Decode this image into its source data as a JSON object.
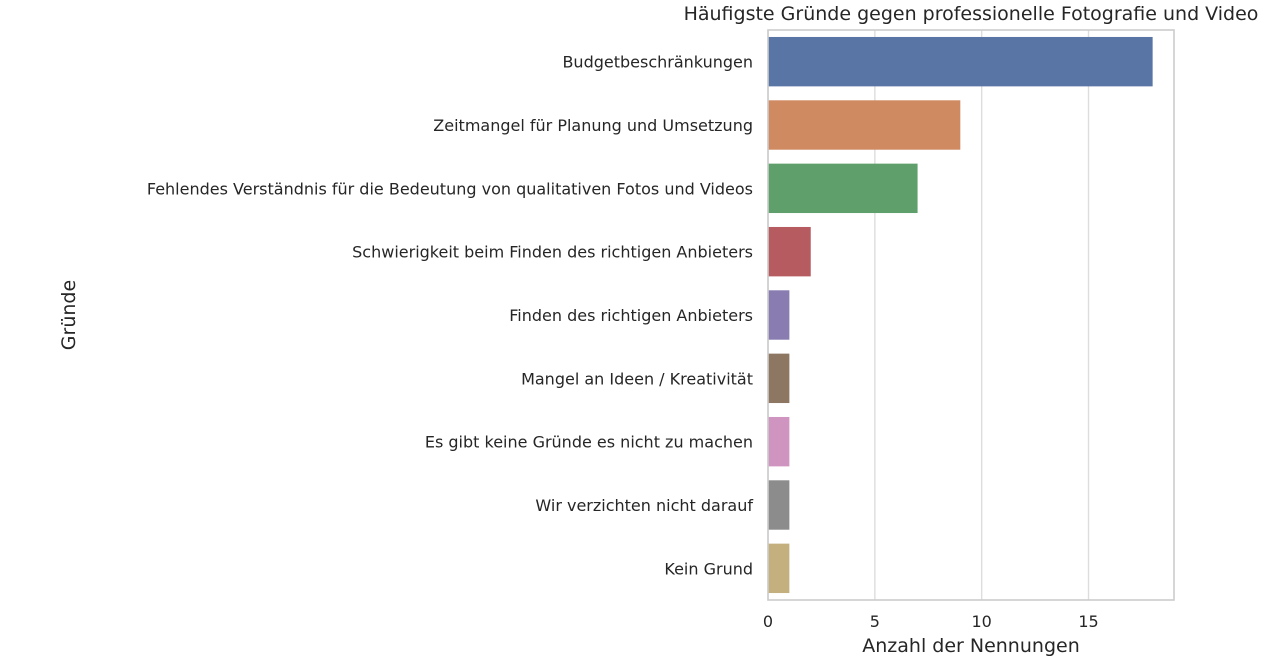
{
  "chart_data": {
    "type": "bar",
    "orientation": "horizontal",
    "title": "Häufigste Gründe gegen professionelle Fotografie und Video",
    "xlabel": "Anzahl der Nennungen",
    "ylabel": "Gründe",
    "xlim": [
      0,
      19
    ],
    "xticks": [
      0,
      5,
      10,
      15
    ],
    "grid": "vertical",
    "categories": [
      "Budgetbeschränkungen",
      "Zeitmangel für Planung und Umsetzung",
      "Fehlendes Verständnis für die Bedeutung von qualitativen Fotos und Videos",
      "Schwierigkeit beim Finden des richtigen Anbieters",
      "Finden des richtigen Anbieters",
      "Mangel an Ideen / Kreativität",
      "Es gibt keine Gründe es nicht zu machen ",
      "Wir verzichten nicht darauf ",
      "Kein Grund"
    ],
    "values": [
      18,
      9,
      7,
      2,
      1,
      1,
      1,
      1,
      1
    ],
    "colors": [
      "#5975a6",
      "#cf8a62",
      "#5e9f6c",
      "#b65c61",
      "#887cb0",
      "#8d7662",
      "#d094c0",
      "#8c8c8c",
      "#c4b07f"
    ]
  }
}
